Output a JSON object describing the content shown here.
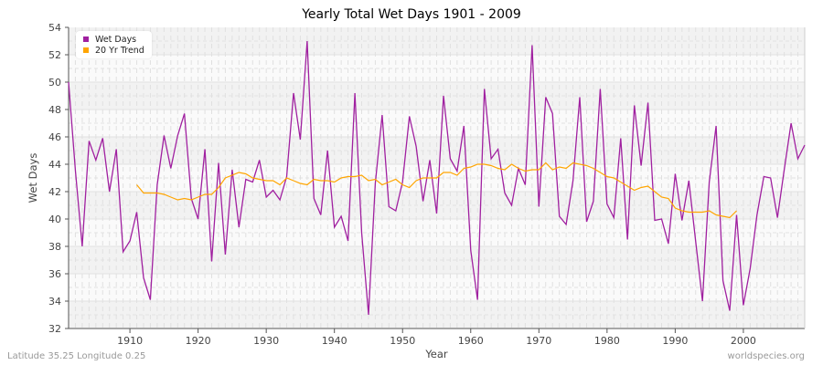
{
  "chart_data": {
    "type": "line",
    "title": "Yearly Total Wet Days 1901 - 2009",
    "xlabel": "Year",
    "ylabel": "Wet Days",
    "xlim": [
      1901,
      2009
    ],
    "ylim": [
      32,
      54
    ],
    "yticks": [
      32,
      34,
      36,
      38,
      40,
      42,
      44,
      46,
      48,
      50,
      52,
      54
    ],
    "xticks": [
      1910,
      1920,
      1930,
      1940,
      1950,
      1960,
      1970,
      1980,
      1990,
      2000
    ],
    "grid": true,
    "legend_position": "top-left",
    "series": [
      {
        "name": "Wet Days",
        "color": "#a020a0",
        "x_start": 1901,
        "values": [
          50,
          43.5,
          38,
          45.7,
          44.3,
          45.9,
          42,
          45.1,
          37.6,
          38.4,
          40.5,
          35.7,
          34.1,
          42.5,
          46.1,
          43.7,
          46.1,
          47.7,
          41.5,
          40,
          45.1,
          36.9,
          44.1,
          37.4,
          43.6,
          39.4,
          42.9,
          42.7,
          44.3,
          41.6,
          42.1,
          41.4,
          43.1,
          49.2,
          45.8,
          53,
          41.5,
          40.3,
          45,
          39.4,
          40.2,
          38.4,
          49.2,
          39,
          33,
          42.6,
          47.6,
          40.9,
          40.6,
          42.7,
          47.5,
          45.3,
          41.3,
          44.3,
          40.4,
          49,
          44.4,
          43.5,
          46.8,
          37.7,
          34.1,
          49.5,
          44.4,
          45.1,
          41.9,
          41,
          43.7,
          42.5,
          52.7,
          40.9,
          48.9,
          47.7,
          40.2,
          39.6,
          42.8,
          48.9,
          39.8,
          41.3,
          49.5,
          41.1,
          40.1,
          45.9,
          38.5,
          48.3,
          43.9,
          48.5,
          39.9,
          40,
          38.2,
          43.3,
          39.9,
          42.8,
          38.4,
          34,
          42.7,
          46.8,
          35.5,
          33.3,
          40.3,
          33.7,
          36.4,
          40.3,
          43.1,
          43,
          40.1,
          43.6,
          47,
          44.4,
          45.4
        ]
      },
      {
        "name": "20 Yr Trend",
        "color": "#ffa500",
        "x_start": 1911,
        "values": [
          42.5,
          41.9,
          41.9,
          41.9,
          41.8,
          41.6,
          41.4,
          41.5,
          41.4,
          41.6,
          41.8,
          41.8,
          42.3,
          43,
          43.2,
          43.4,
          43.3,
          43,
          42.9,
          42.8,
          42.8,
          42.5,
          43,
          42.8,
          42.6,
          42.5,
          42.9,
          42.8,
          42.8,
          42.7,
          43,
          43.1,
          43.1,
          43.2,
          42.8,
          42.9,
          42.5,
          42.7,
          42.9,
          42.5,
          42.3,
          42.8,
          43,
          43,
          43,
          43.4,
          43.4,
          43.2,
          43.7,
          43.8,
          44,
          44,
          43.9,
          43.7,
          43.6,
          44,
          43.7,
          43.5,
          43.6,
          43.6,
          44.1,
          43.6,
          43.8,
          43.7,
          44.1,
          44,
          43.9,
          43.7,
          43.4,
          43.1,
          43,
          42.7,
          42.4,
          42.1,
          42.3,
          42.4,
          42,
          41.6,
          41.5,
          40.8,
          40.6,
          40.5,
          40.5,
          40.5,
          40.6,
          40.3,
          40.2,
          40.1,
          40.6
        ]
      }
    ]
  },
  "footer": {
    "location": "Latitude 35.25 Longitude 0.25",
    "site": "worldspecies.org"
  }
}
